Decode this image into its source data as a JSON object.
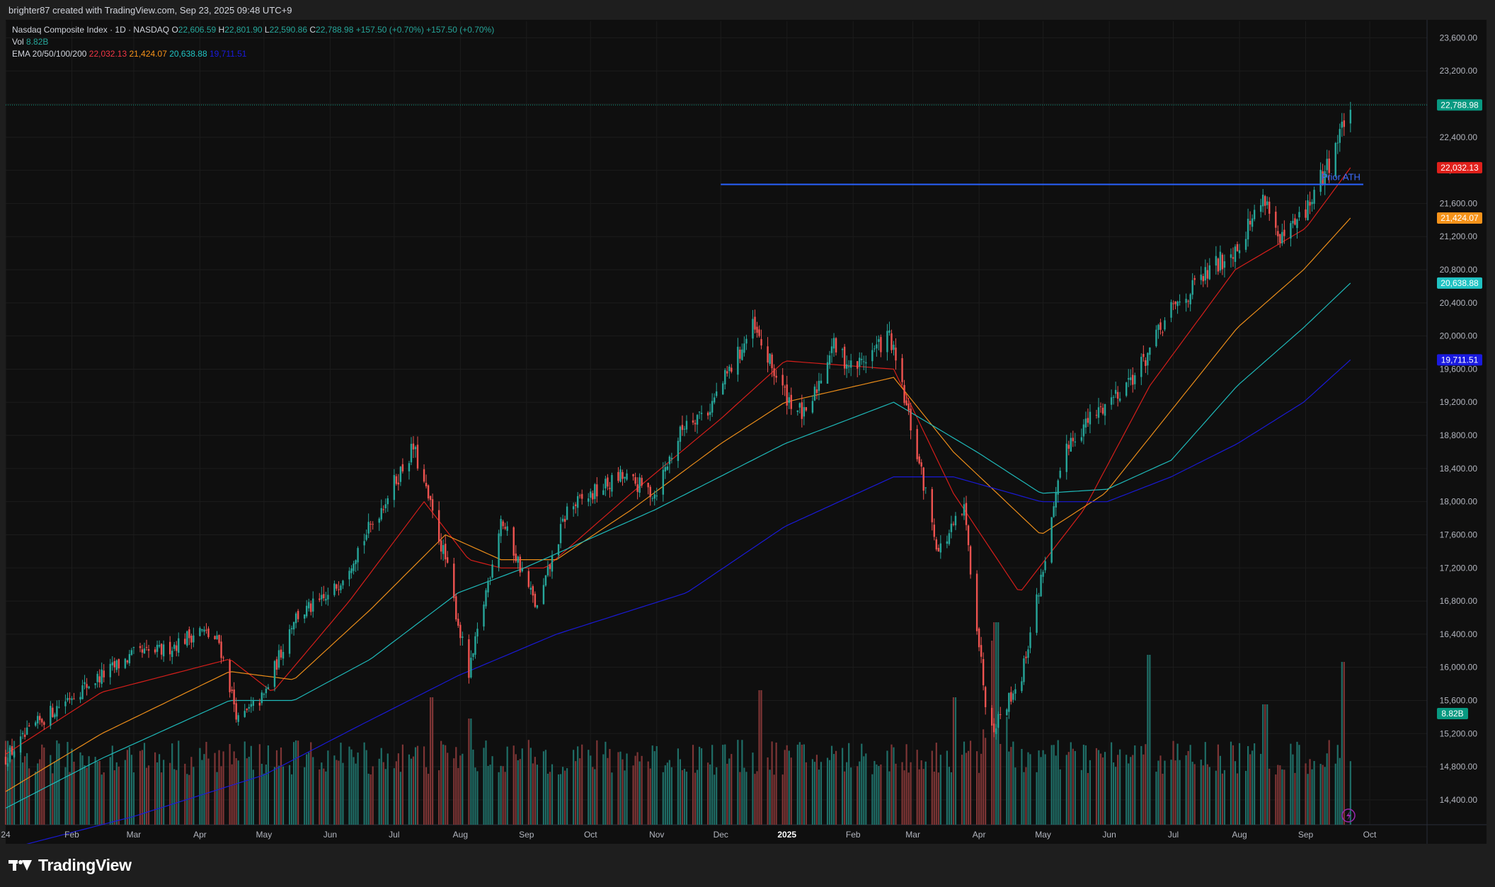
{
  "header": {
    "created_by": "brighter87 created with TradingView.com, Sep 23, 2025 09:48 UTC+9"
  },
  "legend": {
    "symbol": "Nasdaq Composite Index · 1D · NASDAQ",
    "o_label": "O",
    "o_value": "22,606.59",
    "h_label": "H",
    "h_value": "22,801.90",
    "l_label": "L",
    "l_value": "22,590.86",
    "c_label": "C",
    "c_value": "22,788.98",
    "change": "+157.50 (+0.70%)",
    "change2": "+157.50 (+0.70%)",
    "vol_label": "Vol",
    "vol_value": "8.82B",
    "ema_label": "EMA 20/50/100/200",
    "ema20": "22,032.13",
    "ema50": "21,424.07",
    "ema100": "20,638.88",
    "ema200": "19,711.51"
  },
  "annotation": {
    "text": "Prior ATH",
    "level": 21830
  },
  "brand": {
    "name": "TradingView"
  },
  "colors": {
    "up": "#26a69a",
    "down": "#ef5350",
    "vol_up": "#1f6e67",
    "vol_down": "#7e3535",
    "ema20": "#e0201b",
    "ema50": "#f7931a",
    "ema100": "#20c3c3",
    "ema200": "#1a1ae0",
    "hline": "#2962ff",
    "last": "#089981"
  },
  "chart_data": {
    "type": "candlestick",
    "title": "Nasdaq Composite Index · 1D · NASDAQ",
    "x_range": [
      "2024-01-01",
      "2025-10-02"
    ],
    "x_ticks": [
      {
        "label": "24",
        "date": "2024-01-01"
      },
      {
        "label": "Feb",
        "date": "2024-02-01"
      },
      {
        "label": "Mar",
        "date": "2024-03-01"
      },
      {
        "label": "Apr",
        "date": "2024-04-01"
      },
      {
        "label": "May",
        "date": "2024-05-01"
      },
      {
        "label": "Jun",
        "date": "2024-06-01"
      },
      {
        "label": "Jul",
        "date": "2024-07-01"
      },
      {
        "label": "Aug",
        "date": "2024-08-01"
      },
      {
        "label": "Sep",
        "date": "2024-09-01"
      },
      {
        "label": "Oct",
        "date": "2024-10-01"
      },
      {
        "label": "Nov",
        "date": "2024-11-01"
      },
      {
        "label": "Dec",
        "date": "2024-12-01"
      },
      {
        "label": "2025",
        "date": "2025-01-01",
        "bold": true
      },
      {
        "label": "Feb",
        "date": "2025-02-01"
      },
      {
        "label": "Mar",
        "date": "2025-03-01"
      },
      {
        "label": "Apr",
        "date": "2025-04-01"
      },
      {
        "label": "May",
        "date": "2025-05-01"
      },
      {
        "label": "Jun",
        "date": "2025-06-01"
      },
      {
        "label": "Jul",
        "date": "2025-07-01"
      },
      {
        "label": "Aug",
        "date": "2025-08-01"
      },
      {
        "label": "Sep",
        "date": "2025-09-01"
      },
      {
        "label": "Oct",
        "date": "2025-10-01"
      }
    ],
    "y_range": [
      14100,
      23800
    ],
    "y_ticks": [
      "14,400.00",
      "14,800.00",
      "15,200.00",
      "15,600.00",
      "16,000.00",
      "16,400.00",
      "16,800.00",
      "17,200.00",
      "17,600.00",
      "18,000.00",
      "18,400.00",
      "18,800.00",
      "19,200.00",
      "19,600.00",
      "20,000.00",
      "20,400.00",
      "20,800.00",
      "21,200.00",
      "21,600.00",
      "22,000.00",
      "22,400.00",
      "22,800.00",
      "23,200.00",
      "23,600.00"
    ],
    "y_tick_values": [
      14400,
      14800,
      15200,
      15600,
      16000,
      16400,
      16800,
      17200,
      17600,
      18000,
      18400,
      18800,
      19200,
      19600,
      20000,
      20400,
      20800,
      21200,
      21600,
      22000,
      22400,
      22800,
      23200,
      23600
    ],
    "close_path": [
      [
        "2024-01-01",
        14900
      ],
      [
        "2024-01-15",
        15300
      ],
      [
        "2024-01-31",
        15650
      ],
      [
        "2024-02-15",
        15900
      ],
      [
        "2024-03-01",
        16150
      ],
      [
        "2024-03-15",
        16200
      ],
      [
        "2024-04-01",
        16450
      ],
      [
        "2024-04-10",
        16300
      ],
      [
        "2024-04-19",
        15350
      ],
      [
        "2024-05-01",
        15650
      ],
      [
        "2024-05-15",
        16600
      ],
      [
        "2024-06-01",
        16850
      ],
      [
        "2024-06-20",
        17700
      ],
      [
        "2024-07-10",
        18650
      ],
      [
        "2024-07-25",
        17300
      ],
      [
        "2024-08-05",
        15900
      ],
      [
        "2024-08-20",
        17800
      ],
      [
        "2024-09-06",
        16700
      ],
      [
        "2024-09-20",
        17900
      ],
      [
        "2024-10-15",
        18300
      ],
      [
        "2024-10-31",
        18100
      ],
      [
        "2024-11-15",
        19000
      ],
      [
        "2024-11-25",
        19100
      ],
      [
        "2024-12-16",
        20100
      ],
      [
        "2024-12-31",
        19300
      ],
      [
        "2025-01-10",
        19000
      ],
      [
        "2025-01-22",
        19900
      ],
      [
        "2025-02-01",
        19600
      ],
      [
        "2025-02-18",
        20000
      ],
      [
        "2025-03-01",
        18800
      ],
      [
        "2025-03-13",
        17400
      ],
      [
        "2025-03-25",
        17900
      ],
      [
        "2025-04-04",
        15600
      ],
      [
        "2025-04-08",
        15300
      ],
      [
        "2025-04-21",
        15900
      ],
      [
        "2025-05-01",
        17200
      ],
      [
        "2025-05-12",
        18700
      ],
      [
        "2025-05-31",
        19200
      ],
      [
        "2025-06-15",
        19600
      ],
      [
        "2025-06-30",
        20300
      ],
      [
        "2025-07-15",
        20700
      ],
      [
        "2025-07-31",
        21100
      ],
      [
        "2025-08-13",
        21700
      ],
      [
        "2025-08-20",
        21100
      ],
      [
        "2025-09-01",
        21500
      ],
      [
        "2025-09-12",
        22100
      ],
      [
        "2025-09-22",
        22789
      ]
    ],
    "ema_path": {
      "ema20": [
        [
          "2024-01-01",
          14950
        ],
        [
          "2024-02-15",
          15700
        ],
        [
          "2024-04-15",
          16100
        ],
        [
          "2024-05-05",
          15700
        ],
        [
          "2024-06-10",
          16800
        ],
        [
          "2024-07-15",
          18000
        ],
        [
          "2024-08-05",
          17300
        ],
        [
          "2024-08-20",
          17200
        ],
        [
          "2024-09-10",
          17200
        ],
        [
          "2024-10-20",
          18100
        ],
        [
          "2024-12-01",
          19000
        ],
        [
          "2024-12-31",
          19700
        ],
        [
          "2025-02-20",
          19600
        ],
        [
          "2025-03-20",
          18100
        ],
        [
          "2025-04-20",
          16900
        ],
        [
          "2025-05-20",
          17900
        ],
        [
          "2025-06-20",
          19400
        ],
        [
          "2025-07-30",
          20800
        ],
        [
          "2025-09-01",
          21300
        ],
        [
          "2025-09-22",
          22032
        ]
      ],
      "ema50": [
        [
          "2024-01-01",
          14500
        ],
        [
          "2024-02-15",
          15200
        ],
        [
          "2024-04-15",
          15950
        ],
        [
          "2024-05-15",
          15850
        ],
        [
          "2024-06-20",
          16700
        ],
        [
          "2024-07-25",
          17600
        ],
        [
          "2024-08-20",
          17300
        ],
        [
          "2024-09-15",
          17300
        ],
        [
          "2024-10-20",
          17900
        ],
        [
          "2024-12-01",
          18700
        ],
        [
          "2024-12-31",
          19200
        ],
        [
          "2025-02-20",
          19500
        ],
        [
          "2025-03-20",
          18600
        ],
        [
          "2025-04-30",
          17600
        ],
        [
          "2025-05-30",
          18100
        ],
        [
          "2025-06-30",
          19100
        ],
        [
          "2025-07-31",
          20100
        ],
        [
          "2025-08-31",
          20800
        ],
        [
          "2025-09-22",
          21424
        ]
      ],
      "ema100": [
        [
          "2024-01-01",
          14300
        ],
        [
          "2024-02-15",
          14900
        ],
        [
          "2024-04-15",
          15600
        ],
        [
          "2024-05-15",
          15600
        ],
        [
          "2024-06-20",
          16100
        ],
        [
          "2024-07-31",
          16900
        ],
        [
          "2024-08-31",
          17200
        ],
        [
          "2024-10-31",
          17900
        ],
        [
          "2024-12-31",
          18700
        ],
        [
          "2025-02-20",
          19200
        ],
        [
          "2025-03-31",
          18600
        ],
        [
          "2025-04-30",
          18100
        ],
        [
          "2025-05-31",
          18150
        ],
        [
          "2025-06-30",
          18500
        ],
        [
          "2025-07-31",
          19400
        ],
        [
          "2025-08-31",
          20100
        ],
        [
          "2025-09-22",
          20639
        ]
      ],
      "ema200": [
        [
          "2024-01-01",
          13800
        ],
        [
          "2024-03-01",
          14200
        ],
        [
          "2024-05-01",
          14700
        ],
        [
          "2024-06-15",
          15300
        ],
        [
          "2024-07-31",
          15900
        ],
        [
          "2024-09-15",
          16400
        ],
        [
          "2024-11-15",
          16900
        ],
        [
          "2024-12-31",
          17700
        ],
        [
          "2025-02-20",
          18300
        ],
        [
          "2025-03-20",
          18300
        ],
        [
          "2025-04-30",
          18000
        ],
        [
          "2025-05-31",
          18000
        ],
        [
          "2025-06-30",
          18300
        ],
        [
          "2025-07-31",
          18700
        ],
        [
          "2025-08-31",
          19200
        ],
        [
          "2025-09-22",
          19712
        ]
      ]
    },
    "volume_spikes": [
      [
        "2024-07-19",
        1.8
      ],
      [
        "2024-08-05",
        1.5
      ],
      [
        "2024-12-20",
        1.9
      ],
      [
        "2025-03-21",
        1.8
      ],
      [
        "2025-04-07",
        2.0
      ],
      [
        "2025-04-09",
        2.2
      ],
      [
        "2025-06-20",
        2.4
      ],
      [
        "2025-08-13",
        1.7
      ],
      [
        "2025-09-19",
        2.3
      ]
    ],
    "last_price": {
      "value": 22788.98,
      "label": "22,788.98"
    },
    "ema_badges": [
      {
        "label": "22,032.13",
        "value": 22032.13,
        "color": "#e0201b"
      },
      {
        "label": "21,424.07",
        "value": 21424.07,
        "color": "#f7931a"
      },
      {
        "label": "20,638.88",
        "value": 20638.88,
        "color": "#20c3c3"
      },
      {
        "label": "19,711.51",
        "value": 19711.51,
        "color": "#1a1ae0"
      }
    ],
    "volume_badge": {
      "label": "8.82B"
    },
    "hline": {
      "value": 21830,
      "from": "2024-12-01",
      "to": "2025-09-28",
      "label": "Prior ATH"
    }
  }
}
